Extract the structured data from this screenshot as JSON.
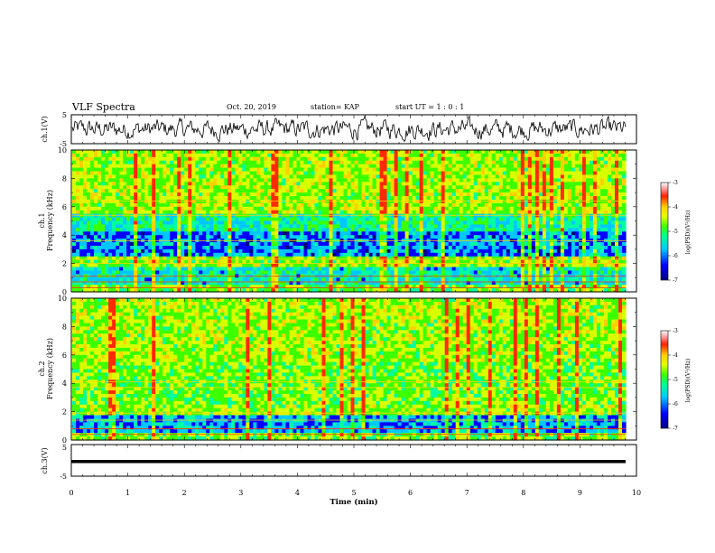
{
  "header": {
    "title": "VLF Spectra",
    "date": "Oct. 20, 2019",
    "station": "station= KAP",
    "start": "start  UT =   1 : 0  : 1"
  },
  "chart_data": [
    {
      "type": "line",
      "ylabel": "ch.1(V)",
      "ylim": [
        -5,
        5
      ],
      "y_ticks": [
        "5",
        "-5"
      ],
      "xlim": [
        0,
        10
      ],
      "description_series": "noisy voltage trace around 0 V"
    },
    {
      "type": "heatmap",
      "ylabel_line1": "ch.1",
      "ylabel_line2": "Frequency  (kHz)",
      "ylim": [
        0,
        10
      ],
      "y_ticks": [
        "0",
        "2",
        "4",
        "6",
        "8",
        "10"
      ],
      "xlim": [
        0,
        10
      ],
      "colorbar": {
        "label": "log(PSD)(V²/Hz)",
        "ticks": [
          "-3",
          "-4",
          "-5",
          "-6",
          "-7"
        ],
        "range": [
          -7,
          -3
        ]
      }
    },
    {
      "type": "heatmap",
      "ylabel_line1": "ch.2",
      "ylabel_line2": "Frequency  (kHz)",
      "ylim": [
        0,
        10
      ],
      "y_ticks": [
        "0",
        "2",
        "4",
        "6",
        "8",
        "10"
      ],
      "xlim": [
        0,
        10
      ],
      "colorbar": {
        "label": "log(PSD)(V²/Hz)",
        "ticks": [
          "-3",
          "-4",
          "-5",
          "-6",
          "-7"
        ],
        "range": [
          -7,
          -3
        ]
      }
    },
    {
      "type": "line",
      "ylabel": "ch.3(V)",
      "ylim": [
        -5,
        5
      ],
      "y_ticks": [
        "5",
        "-5"
      ],
      "xlim": [
        0,
        10
      ],
      "constant_value": 0
    }
  ],
  "x_axis": {
    "label": "Time  (min)",
    "ticks": [
      "0",
      "1",
      "2",
      "3",
      "4",
      "5",
      "6",
      "7",
      "8",
      "9",
      "10"
    ]
  },
  "colors": {
    "palette": [
      "#00007a",
      "#0000ff",
      "#00c8ff",
      "#00ffa0",
      "#3cff00",
      "#d8ff00",
      "#ffd000",
      "#ff2a00",
      "#ffffff"
    ]
  }
}
